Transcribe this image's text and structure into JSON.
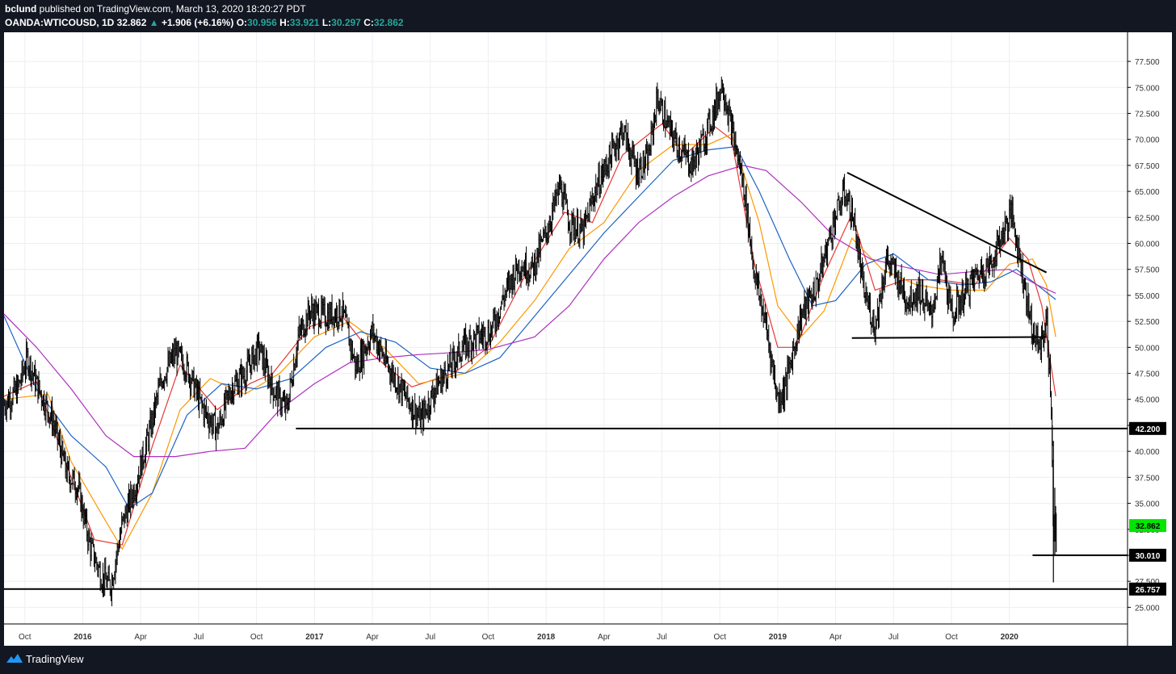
{
  "header": {
    "publisher": "bclund",
    "published_text": " published on TradingView.com, March 13, 2020 18:20:27 PDT",
    "symbol_interval": "OANDA:WTICOUSD, 1D",
    "last": "32.862",
    "change": "+1.906 (+6.16%)",
    "o_label": "O:",
    "o": "30.956",
    "h_label": "H:",
    "h": "33.921",
    "l_label": "L:",
    "l": "30.297",
    "c_label": "C:",
    "c": "32.862"
  },
  "footer": {
    "brand": "TradingView",
    "logo_icon": "tradingview-logo-icon"
  },
  "colors": {
    "background": "#131722",
    "up": "#26a69a",
    "ma_red": "#e53935",
    "ma_orange": "#ff9800",
    "ma_blue": "#1e63c4",
    "ma_purple": "#b02fc0",
    "last_price_tag": "#00e600"
  },
  "chart_data": {
    "type": "candlestick",
    "y_ticks": [
      "25.000",
      "27.500",
      "30.000",
      "32.500",
      "35.000",
      "37.500",
      "40.000",
      "42.500",
      "45.000",
      "47.500",
      "50.000",
      "52.500",
      "55.000",
      "57.500",
      "60.000",
      "62.500",
      "65.000",
      "67.500",
      "70.000",
      "72.500",
      "75.000",
      "77.500"
    ],
    "ylim": [
      23.4,
      80.3
    ],
    "x_labels": [
      {
        "label": "Oct",
        "t": 2015.75
      },
      {
        "label": "2016",
        "t": 2016.0
      },
      {
        "label": "Apr",
        "t": 2016.25
      },
      {
        "label": "Jul",
        "t": 2016.5
      },
      {
        "label": "Oct",
        "t": 2016.75
      },
      {
        "label": "2017",
        "t": 2017.0
      },
      {
        "label": "Apr",
        "t": 2017.25
      },
      {
        "label": "Jul",
        "t": 2017.5
      },
      {
        "label": "Oct",
        "t": 2017.75
      },
      {
        "label": "2018",
        "t": 2018.0
      },
      {
        "label": "Apr",
        "t": 2018.25
      },
      {
        "label": "Jul",
        "t": 2018.5
      },
      {
        "label": "Oct",
        "t": 2018.75
      },
      {
        "label": "2019",
        "t": 2019.0
      },
      {
        "label": "Apr",
        "t": 2019.25
      },
      {
        "label": "Jul",
        "t": 2019.5
      },
      {
        "label": "Oct",
        "t": 2019.75
      },
      {
        "label": "2020",
        "t": 2020.0
      }
    ],
    "xlim": [
      2015.66,
      2020.51
    ],
    "price_path": [
      [
        2015.66,
        44.5
      ],
      [
        2015.72,
        46.0
      ],
      [
        2015.76,
        49.0
      ],
      [
        2015.8,
        46.5
      ],
      [
        2015.87,
        43.0
      ],
      [
        2015.93,
        38.0
      ],
      [
        2015.98,
        36.5
      ],
      [
        2016.03,
        31.0
      ],
      [
        2016.08,
        28.0
      ],
      [
        2016.12,
        27.0
      ],
      [
        2016.17,
        33.0
      ],
      [
        2016.23,
        37.0
      ],
      [
        2016.29,
        42.0
      ],
      [
        2016.34,
        47.0
      ],
      [
        2016.4,
        49.5
      ],
      [
        2016.45,
        48.0
      ],
      [
        2016.52,
        44.0
      ],
      [
        2016.58,
        42.0
      ],
      [
        2016.64,
        46.0
      ],
      [
        2016.7,
        47.5
      ],
      [
        2016.76,
        50.0
      ],
      [
        2016.82,
        46.0
      ],
      [
        2016.88,
        44.0
      ],
      [
        2016.93,
        51.0
      ],
      [
        2016.98,
        53.5
      ],
      [
        2017.05,
        53.0
      ],
      [
        2017.12,
        53.5
      ],
      [
        2017.18,
        48.0
      ],
      [
        2017.25,
        51.5
      ],
      [
        2017.31,
        48.5
      ],
      [
        2017.4,
        45.0
      ],
      [
        2017.46,
        43.0
      ],
      [
        2017.52,
        46.0
      ],
      [
        2017.58,
        48.0
      ],
      [
        2017.64,
        50.0
      ],
      [
        2017.7,
        51.0
      ],
      [
        2017.76,
        51.5
      ],
      [
        2017.82,
        55.0
      ],
      [
        2017.88,
        58.0
      ],
      [
        2017.94,
        57.5
      ],
      [
        2018.0,
        61.0
      ],
      [
        2018.06,
        65.5
      ],
      [
        2018.1,
        62.0
      ],
      [
        2018.16,
        61.0
      ],
      [
        2018.21,
        65.0
      ],
      [
        2018.27,
        68.0
      ],
      [
        2018.33,
        71.0
      ],
      [
        2018.39,
        67.0
      ],
      [
        2018.44,
        68.0
      ],
      [
        2018.48,
        74.0
      ],
      [
        2018.53,
        71.0
      ],
      [
        2018.58,
        69.0
      ],
      [
        2018.63,
        67.5
      ],
      [
        2018.68,
        70.0
      ],
      [
        2018.73,
        73.0
      ],
      [
        2018.76,
        75.5
      ],
      [
        2018.8,
        71.0
      ],
      [
        2018.85,
        66.0
      ],
      [
        2018.9,
        57.0
      ],
      [
        2018.95,
        52.0
      ],
      [
        2019.0,
        45.0
      ],
      [
        2019.03,
        46.0
      ],
      [
        2019.1,
        53.0
      ],
      [
        2019.17,
        56.0
      ],
      [
        2019.24,
        62.0
      ],
      [
        2019.29,
        65.0
      ],
      [
        2019.33,
        62.0
      ],
      [
        2019.37,
        55.5
      ],
      [
        2019.42,
        52.0
      ],
      [
        2019.47,
        58.5
      ],
      [
        2019.52,
        56.5
      ],
      [
        2019.56,
        54.5
      ],
      [
        2019.61,
        55.5
      ],
      [
        2019.66,
        53.0
      ],
      [
        2019.71,
        58.5
      ],
      [
        2019.75,
        53.0
      ],
      [
        2019.8,
        55.0
      ],
      [
        2019.86,
        57.0
      ],
      [
        2019.92,
        58.0
      ],
      [
        2019.97,
        61.0
      ],
      [
        2020.01,
        63.0
      ],
      [
        2020.05,
        58.0
      ],
      [
        2020.1,
        51.5
      ],
      [
        2020.13,
        50.0
      ],
      [
        2020.16,
        52.5
      ],
      [
        2020.18,
        45.0
      ],
      [
        2020.19,
        31.0
      ],
      [
        2020.2,
        32.9
      ]
    ],
    "moving_averages": [
      {
        "color": "#e53935",
        "points": [
          [
            2015.66,
            45.3
          ],
          [
            2015.8,
            46.7
          ],
          [
            2015.9,
            40.5
          ],
          [
            2016.05,
            31.5
          ],
          [
            2016.17,
            31.0
          ],
          [
            2016.3,
            40.5
          ],
          [
            2016.42,
            48.3
          ],
          [
            2016.58,
            44.0
          ],
          [
            2016.72,
            46.5
          ],
          [
            2016.82,
            47.5
          ],
          [
            2016.98,
            52.0
          ],
          [
            2017.12,
            53.0
          ],
          [
            2017.25,
            49.3
          ],
          [
            2017.42,
            46.2
          ],
          [
            2017.6,
            47.5
          ],
          [
            2017.75,
            50.0
          ],
          [
            2017.9,
            56.5
          ],
          [
            2018.08,
            63.0
          ],
          [
            2018.2,
            62.0
          ],
          [
            2018.33,
            68.5
          ],
          [
            2018.5,
            71.5
          ],
          [
            2018.6,
            68.5
          ],
          [
            2018.73,
            71.2
          ],
          [
            2018.8,
            70.0
          ],
          [
            2018.9,
            58.0
          ],
          [
            2019.0,
            50.0
          ],
          [
            2019.08,
            50.0
          ],
          [
            2019.2,
            57.0
          ],
          [
            2019.32,
            62.8
          ],
          [
            2019.42,
            55.5
          ],
          [
            2019.55,
            56.5
          ],
          [
            2019.7,
            56.5
          ],
          [
            2019.85,
            56.0
          ],
          [
            2020.0,
            60.5
          ],
          [
            2020.08,
            58.5
          ],
          [
            2020.14,
            54.0
          ],
          [
            2020.2,
            45.3
          ]
        ]
      },
      {
        "color": "#ff9800",
        "points": [
          [
            2015.66,
            45.0
          ],
          [
            2015.85,
            45.5
          ],
          [
            2015.95,
            39.0
          ],
          [
            2016.08,
            34.0
          ],
          [
            2016.17,
            30.6
          ],
          [
            2016.3,
            36.0
          ],
          [
            2016.42,
            44.0
          ],
          [
            2016.55,
            47.0
          ],
          [
            2016.7,
            45.5
          ],
          [
            2016.85,
            47.5
          ],
          [
            2017.0,
            51.0
          ],
          [
            2017.15,
            52.5
          ],
          [
            2017.3,
            50.0
          ],
          [
            2017.45,
            46.5
          ],
          [
            2017.65,
            47.5
          ],
          [
            2017.8,
            50.5
          ],
          [
            2017.95,
            54.5
          ],
          [
            2018.1,
            59.5
          ],
          [
            2018.25,
            62.0
          ],
          [
            2018.4,
            67.0
          ],
          [
            2018.55,
            69.5
          ],
          [
            2018.7,
            69.5
          ],
          [
            2018.8,
            70.5
          ],
          [
            2018.92,
            62.0
          ],
          [
            2019.0,
            54.0
          ],
          [
            2019.1,
            51.0
          ],
          [
            2019.2,
            53.5
          ],
          [
            2019.32,
            60.5
          ],
          [
            2019.45,
            57.5
          ],
          [
            2019.6,
            56.0
          ],
          [
            2019.75,
            55.5
          ],
          [
            2019.9,
            55.5
          ],
          [
            2020.0,
            58.0
          ],
          [
            2020.1,
            58.5
          ],
          [
            2020.16,
            56.0
          ],
          [
            2020.2,
            51.0
          ]
        ]
      },
      {
        "color": "#1e63c4",
        "points": [
          [
            2015.66,
            53.0
          ],
          [
            2015.8,
            46.0
          ],
          [
            2015.95,
            41.5
          ],
          [
            2016.1,
            38.5
          ],
          [
            2016.2,
            34.5
          ],
          [
            2016.3,
            36.0
          ],
          [
            2016.45,
            43.5
          ],
          [
            2016.6,
            46.5
          ],
          [
            2016.75,
            46.0
          ],
          [
            2016.9,
            47.0
          ],
          [
            2017.05,
            50.0
          ],
          [
            2017.2,
            51.5
          ],
          [
            2017.35,
            50.5
          ],
          [
            2017.5,
            48.0
          ],
          [
            2017.65,
            47.5
          ],
          [
            2017.8,
            49.0
          ],
          [
            2017.95,
            53.0
          ],
          [
            2018.1,
            57.0
          ],
          [
            2018.25,
            61.0
          ],
          [
            2018.4,
            64.5
          ],
          [
            2018.55,
            68.0
          ],
          [
            2018.7,
            69.0
          ],
          [
            2018.82,
            69.3
          ],
          [
            2018.92,
            65.0
          ],
          [
            2019.05,
            58.5
          ],
          [
            2019.15,
            54.0
          ],
          [
            2019.25,
            54.5
          ],
          [
            2019.38,
            58.0
          ],
          [
            2019.5,
            59.0
          ],
          [
            2019.65,
            56.5
          ],
          [
            2019.8,
            56.0
          ],
          [
            2019.92,
            56.3
          ],
          [
            2020.03,
            57.5
          ],
          [
            2020.12,
            56.0
          ],
          [
            2020.2,
            54.6
          ]
        ]
      },
      {
        "color": "#b02fc0",
        "points": [
          [
            2015.66,
            53.2
          ],
          [
            2015.8,
            50.0
          ],
          [
            2015.95,
            46.0
          ],
          [
            2016.1,
            41.5
          ],
          [
            2016.22,
            39.5
          ],
          [
            2016.4,
            39.5
          ],
          [
            2016.55,
            40.0
          ],
          [
            2016.7,
            40.3
          ],
          [
            2016.85,
            44.0
          ],
          [
            2017.0,
            46.5
          ],
          [
            2017.15,
            48.5
          ],
          [
            2017.3,
            49.0
          ],
          [
            2017.45,
            49.3
          ],
          [
            2017.6,
            49.5
          ],
          [
            2017.75,
            49.8
          ],
          [
            2017.95,
            51.0
          ],
          [
            2018.1,
            54.0
          ],
          [
            2018.25,
            58.5
          ],
          [
            2018.4,
            62.0
          ],
          [
            2018.55,
            64.5
          ],
          [
            2018.7,
            66.5
          ],
          [
            2018.85,
            67.5
          ],
          [
            2018.95,
            67.0
          ],
          [
            2019.1,
            64.0
          ],
          [
            2019.25,
            60.5
          ],
          [
            2019.4,
            58.5
          ],
          [
            2019.55,
            57.7
          ],
          [
            2019.7,
            57.0
          ],
          [
            2019.85,
            57.3
          ],
          [
            2020.0,
            57.5
          ],
          [
            2020.12,
            56.0
          ],
          [
            2020.2,
            55.2
          ]
        ]
      }
    ],
    "trendlines": [
      {
        "name": "support-42-200",
        "points": [
          [
            2016.92,
            42.2
          ],
          [
            2020.51,
            42.2
          ]
        ]
      },
      {
        "name": "support-26-757",
        "points": [
          [
            2015.66,
            26.757
          ],
          [
            2020.51,
            26.757
          ]
        ]
      },
      {
        "name": "support-30-010",
        "points": [
          [
            2020.1,
            30.01
          ],
          [
            2020.51,
            30.01
          ]
        ]
      },
      {
        "name": "neckline-51",
        "points": [
          [
            2019.32,
            50.9
          ],
          [
            2020.16,
            51.0
          ]
        ]
      },
      {
        "name": "descending-trendline",
        "points": [
          [
            2019.3,
            66.8
          ],
          [
            2020.16,
            57.2
          ]
        ]
      }
    ],
    "price_labels": [
      {
        "text": "42.200",
        "y": 42.2,
        "bg": "#000000",
        "fg": "#ffffff"
      },
      {
        "text": "32.862",
        "y": 32.862,
        "bg": "#00e600",
        "fg": "#000000"
      },
      {
        "text": "30.010",
        "y": 30.01,
        "bg": "#000000",
        "fg": "#ffffff"
      },
      {
        "text": "26.757",
        "y": 26.757,
        "bg": "#000000",
        "fg": "#ffffff"
      }
    ],
    "grid": true
  }
}
